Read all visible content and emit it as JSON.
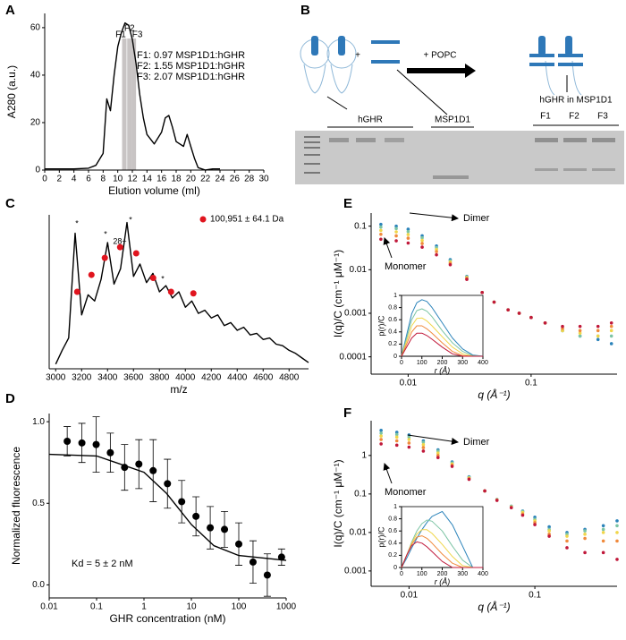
{
  "panels": {
    "letters": [
      "A",
      "B",
      "C",
      "D",
      "E",
      "F"
    ]
  },
  "schematic_b": {
    "plus": "+",
    "reagent": "+ POPC",
    "protein": "hGHR",
    "scaffold": "MSP1D1",
    "product": "hGHR in MSP1D1",
    "lanes": [
      "F1",
      "F2",
      "F3"
    ]
  },
  "chart_data": [
    {
      "type": "line",
      "x_label": "Elution volume (ml)",
      "y_label": "A280 (a.u.)",
      "x": [
        0,
        2,
        4,
        6,
        7,
        8,
        8.5,
        9,
        9.5,
        10,
        10.5,
        11,
        11.5,
        12,
        12.5,
        13,
        13.5,
        14,
        15,
        16,
        16.5,
        17,
        17.5,
        18,
        19,
        19.5,
        20,
        20.5,
        21,
        22,
        23,
        24
      ],
      "series": [
        {
          "color": "#000000",
          "mode": "line",
          "values": [
            0.5,
            0.5,
            0.5,
            0.8,
            2,
            7,
            30,
            25,
            40,
            52,
            58,
            62,
            61,
            55,
            45,
            32,
            22,
            15,
            11,
            16,
            22,
            23,
            18,
            12,
            10,
            15,
            10,
            5,
            1,
            0,
            0.5,
            0.5
          ]
        }
      ],
      "fractions": {
        "labels": [
          "F1",
          "F2",
          "F3"
        ],
        "x": [
          10.9,
          11.6,
          12.2
        ],
        "color": "#c8c4c4"
      },
      "annotations": [
        "F1: 0.97 MSP1D1:hGHR",
        "F2: 1.55 MSP1D1:hGHR",
        "F3: 2.07 MSP1D1:hGHR"
      ],
      "xlim": [
        0,
        30
      ],
      "ylim": [
        0,
        66
      ],
      "xticks": [
        0,
        2,
        4,
        6,
        8,
        10,
        12,
        14,
        16,
        18,
        20,
        22,
        24,
        26,
        28,
        30
      ],
      "yticks": [
        0,
        20,
        40,
        60
      ]
    },
    {
      "type": "line",
      "x_label": "m/z",
      "legend": "top-right",
      "x": [
        3000,
        3050,
        3100,
        3150,
        3200,
        3250,
        3300,
        3350,
        3400,
        3450,
        3500,
        3550,
        3600,
        3650,
        3700,
        3750,
        3800,
        3850,
        3900,
        3950,
        4000,
        4050,
        4100,
        4150,
        4200,
        4250,
        4300,
        4350,
        4400,
        4450,
        4500,
        4550,
        4600,
        4650,
        4700,
        4750,
        4800,
        4850,
        4900,
        4950
      ],
      "series": [
        {
          "color": "#000000",
          "mode": "line",
          "values": [
            0.03,
            0.12,
            0.2,
            0.88,
            0.35,
            0.48,
            0.44,
            0.58,
            0.82,
            0.55,
            0.65,
            0.95,
            0.6,
            0.68,
            0.56,
            0.62,
            0.5,
            0.54,
            0.46,
            0.5,
            0.4,
            0.44,
            0.36,
            0.38,
            0.33,
            0.35,
            0.28,
            0.3,
            0.25,
            0.27,
            0.22,
            0.23,
            0.19,
            0.2,
            0.16,
            0.15,
            0.12,
            0.1,
            0.07,
            0.04
          ]
        },
        {
          "name": "100,951  ± 64.1 Da",
          "color": "#e0141e",
          "mode": "markers",
          "x": [
            3166,
            3276,
            3379,
            3497,
            3621,
            3752,
            3890,
            4062
          ],
          "values": [
            0.5,
            0.61,
            0.72,
            0.79,
            0.75,
            0.59,
            0.5,
            0.49
          ]
        }
      ],
      "annotations": [
        "*",
        "*",
        "28+",
        "*",
        "*"
      ],
      "xlim": [
        2950,
        4950
      ],
      "ylim": [
        0,
        1
      ],
      "xticks": [
        3000,
        3200,
        3400,
        3600,
        3800,
        4000,
        4200,
        4400,
        4600,
        4800
      ]
    },
    {
      "type": "scatter",
      "x_label": "GHR concentration (nM)",
      "y_label": "Normalized fluorescence",
      "log_x": true,
      "series": [
        {
          "color": "#000000",
          "mode": "markers",
          "x": [
            0.024,
            0.049,
            0.098,
            0.195,
            0.39,
            0.78,
            1.56,
            3.13,
            6.25,
            12.5,
            25,
            50,
            100,
            200,
            400,
            800
          ],
          "values": [
            0.88,
            0.87,
            0.86,
            0.81,
            0.72,
            0.74,
            0.7,
            0.62,
            0.51,
            0.42,
            0.35,
            0.34,
            0.25,
            0.14,
            0.06,
            0.17
          ],
          "errors": [
            0.09,
            0.12,
            0.17,
            0.12,
            0.14,
            0.15,
            0.19,
            0.15,
            0.13,
            0.12,
            0.13,
            0.11,
            0.13,
            0.13,
            0.13,
            0.05
          ]
        },
        {
          "color": "#000000",
          "mode": "line",
          "x": [
            0.01,
            0.1,
            1,
            3,
            5,
            10,
            30,
            100,
            1000
          ],
          "values": [
            0.8,
            0.79,
            0.69,
            0.56,
            0.48,
            0.37,
            0.24,
            0.18,
            0.15
          ]
        }
      ],
      "annotations": [
        "Kd = 5 ± 2 nM"
      ],
      "xlim": [
        0.01,
        1000
      ],
      "ylim": [
        -0.08,
        1.05
      ],
      "xticks": [
        0.01,
        0.1,
        1,
        10,
        100,
        1000
      ],
      "yticks": [
        {
          "value": 0,
          "label": "0.0"
        },
        {
          "value": 0.5,
          "label": "0.5"
        },
        {
          "value": 1,
          "label": "1.0"
        }
      ]
    },
    {
      "type": "scatter",
      "x_label": "q (Å⁻¹)",
      "y_label": "I(q)/C (cm⁻¹ μM⁻¹)",
      "log_x": true,
      "log_y": true,
      "x": [
        0.006,
        0.008,
        0.01,
        0.013,
        0.017,
        0.022,
        0.03,
        0.04,
        0.05,
        0.065,
        0.08,
        0.1,
        0.13,
        0.18,
        0.25,
        0.35,
        0.45
      ],
      "series": [
        {
          "color": "#2b83ba",
          "mode": "markers",
          "values": [
            0.11,
            0.1,
            0.085,
            0.06,
            0.035,
            0.017,
            0.007,
            0.003,
            0.0018,
            0.0012,
            0.001,
            0.0008,
            0.0006,
            0.0004,
            0.0003,
            0.00025,
            0.0002
          ]
        },
        {
          "color": "#7cc4a4",
          "mode": "markers",
          "values": [
            0.095,
            0.088,
            0.075,
            0.054,
            0.032,
            0.016,
            0.0068,
            0.003,
            0.0018,
            0.0012,
            0.001,
            0.0008,
            0.0006,
            0.0004,
            0.0003,
            0.0003,
            0.0003
          ]
        },
        {
          "color": "#f0d64a",
          "mode": "markers",
          "values": [
            0.08,
            0.074,
            0.064,
            0.047,
            0.029,
            0.015,
            0.0066,
            0.003,
            0.0018,
            0.0012,
            0.001,
            0.0008,
            0.0006,
            0.0004,
            0.00035,
            0.0003,
            0.0004
          ]
        },
        {
          "color": "#f08a3c",
          "mode": "markers",
          "values": [
            0.065,
            0.06,
            0.053,
            0.04,
            0.026,
            0.014,
            0.0063,
            0.003,
            0.0018,
            0.0012,
            0.001,
            0.0008,
            0.0006,
            0.00045,
            0.0004,
            0.0004,
            0.0005
          ]
        },
        {
          "color": "#c0183a",
          "mode": "markers",
          "values": [
            0.05,
            0.046,
            0.041,
            0.033,
            0.022,
            0.013,
            0.006,
            0.003,
            0.0018,
            0.0012,
            0.001,
            0.0008,
            0.0006,
            0.0005,
            0.0005,
            0.0005,
            0.0006
          ]
        }
      ],
      "annotations": [
        "Dimer",
        "Monomer"
      ],
      "xlim": [
        0.005,
        0.5
      ],
      "ylim": [
        4e-05,
        0.2
      ],
      "xticks": [
        0.01,
        0.1
      ],
      "yticks": [
        0.0001,
        0.001,
        0.01,
        0.1
      ]
    },
    {
      "type": "line",
      "x_label": "r (Å)",
      "y_label": "p(r)/C",
      "frame": "box",
      "x": [
        0,
        25,
        50,
        75,
        100,
        125,
        150,
        200,
        250,
        300,
        350,
        400
      ],
      "series": [
        {
          "color": "#2b83ba",
          "mode": "line",
          "values": [
            0,
            0.35,
            0.7,
            0.88,
            0.93,
            0.9,
            0.8,
            0.55,
            0.3,
            0.12,
            0.02,
            0
          ]
        },
        {
          "color": "#7cc4a4",
          "mode": "line",
          "values": [
            0,
            0.3,
            0.6,
            0.75,
            0.78,
            0.74,
            0.65,
            0.42,
            0.22,
            0.08,
            0.01,
            0
          ]
        },
        {
          "color": "#f0d64a",
          "mode": "line",
          "values": [
            0,
            0.25,
            0.5,
            0.62,
            0.63,
            0.58,
            0.5,
            0.32,
            0.15,
            0.04,
            0,
            0
          ]
        },
        {
          "color": "#f08a3c",
          "mode": "line",
          "values": [
            0,
            0.2,
            0.4,
            0.5,
            0.5,
            0.45,
            0.38,
            0.22,
            0.08,
            0.01,
            0,
            0
          ]
        },
        {
          "color": "#c0183a",
          "mode": "line",
          "values": [
            0,
            0.15,
            0.3,
            0.38,
            0.38,
            0.34,
            0.28,
            0.15,
            0.04,
            0,
            0,
            0
          ]
        }
      ],
      "xlim": [
        0,
        400
      ],
      "ylim": [
        0,
        1
      ],
      "xticks": [
        0,
        100,
        200,
        300,
        400
      ],
      "yticks": [
        0,
        0.2,
        0.4,
        0.6,
        0.8,
        1
      ]
    },
    {
      "type": "scatter",
      "x_label": "q (Å⁻¹)",
      "y_label": "I(q)/C (cm⁻¹ μM⁻¹)",
      "log_x": true,
      "log_y": true,
      "x": [
        0.006,
        0.008,
        0.01,
        0.013,
        0.017,
        0.022,
        0.03,
        0.04,
        0.05,
        0.065,
        0.08,
        0.1,
        0.13,
        0.18,
        0.25,
        0.35,
        0.45
      ],
      "series": [
        {
          "color": "#2b83ba",
          "mode": "markers",
          "values": [
            4.5,
            4,
            3.4,
            2.4,
            1.4,
            0.68,
            0.28,
            0.12,
            0.072,
            0.048,
            0.036,
            0.025,
            0.014,
            0.01,
            0.012,
            0.015,
            0.02
          ]
        },
        {
          "color": "#7cc4a4",
          "mode": "markers",
          "values": [
            3.8,
            3.5,
            3,
            2.2,
            1.3,
            0.64,
            0.27,
            0.12,
            0.072,
            0.048,
            0.035,
            0.022,
            0.012,
            0.009,
            0.011,
            0.012,
            0.015
          ]
        },
        {
          "color": "#f0d64a",
          "mode": "markers",
          "values": [
            3.2,
            3,
            2.6,
            1.9,
            1.15,
            0.6,
            0.26,
            0.12,
            0.07,
            0.046,
            0.033,
            0.02,
            0.011,
            0.008,
            0.009,
            0.01,
            0.01
          ]
        },
        {
          "color": "#f08a3c",
          "mode": "markers",
          "values": [
            2.6,
            2.4,
            2.1,
            1.6,
            1,
            0.56,
            0.25,
            0.12,
            0.07,
            0.045,
            0.03,
            0.018,
            0.009,
            0.006,
            0.007,
            0.006,
            0.006
          ]
        },
        {
          "color": "#c0183a",
          "mode": "markers",
          "values": [
            2,
            1.85,
            1.65,
            1.3,
            0.88,
            0.52,
            0.24,
            0.12,
            0.068,
            0.044,
            0.028,
            0.016,
            0.008,
            0.004,
            0.003,
            0.003,
            0.002
          ]
        }
      ],
      "annotations": [
        "Dimer",
        "Monomer"
      ],
      "xlim": [
        0.005,
        0.45
      ],
      "ylim": [
        0.0004,
        8
      ],
      "xticks": [
        0.01,
        0.1
      ],
      "yticks": [
        0.001,
        0.01,
        0.1,
        1
      ]
    },
    {
      "type": "line",
      "x_label": "r (Å)",
      "y_label": "p(r)/C",
      "frame": "box",
      "x": [
        0,
        25,
        50,
        75,
        100,
        125,
        150,
        200,
        250,
        300,
        350,
        400
      ],
      "series": [
        {
          "color": "#2b83ba",
          "mode": "line",
          "values": [
            0,
            0.15,
            0.32,
            0.48,
            0.62,
            0.74,
            0.84,
            0.92,
            0.7,
            0.35,
            0,
            0
          ]
        },
        {
          "color": "#7cc4a4",
          "mode": "line",
          "values": [
            0,
            0.2,
            0.42,
            0.6,
            0.72,
            0.78,
            0.76,
            0.6,
            0.35,
            0.12,
            0,
            0
          ]
        },
        {
          "color": "#f0d64a",
          "mode": "line",
          "values": [
            0,
            0.2,
            0.4,
            0.55,
            0.62,
            0.62,
            0.56,
            0.38,
            0.18,
            0.03,
            0,
            0
          ]
        },
        {
          "color": "#f08a3c",
          "mode": "line",
          "values": [
            0,
            0.2,
            0.38,
            0.5,
            0.52,
            0.48,
            0.4,
            0.22,
            0.07,
            0,
            0,
            0
          ]
        },
        {
          "color": "#c0183a",
          "mode": "line",
          "values": [
            0,
            0.2,
            0.36,
            0.42,
            0.4,
            0.34,
            0.26,
            0.1,
            0,
            0,
            0,
            0
          ]
        }
      ],
      "xlim": [
        0,
        400
      ],
      "ylim": [
        0,
        1
      ],
      "xticks": [
        0,
        100,
        200,
        300,
        400
      ],
      "yticks": [
        0,
        0.2,
        0.4,
        0.6,
        0.8,
        1
      ]
    }
  ]
}
